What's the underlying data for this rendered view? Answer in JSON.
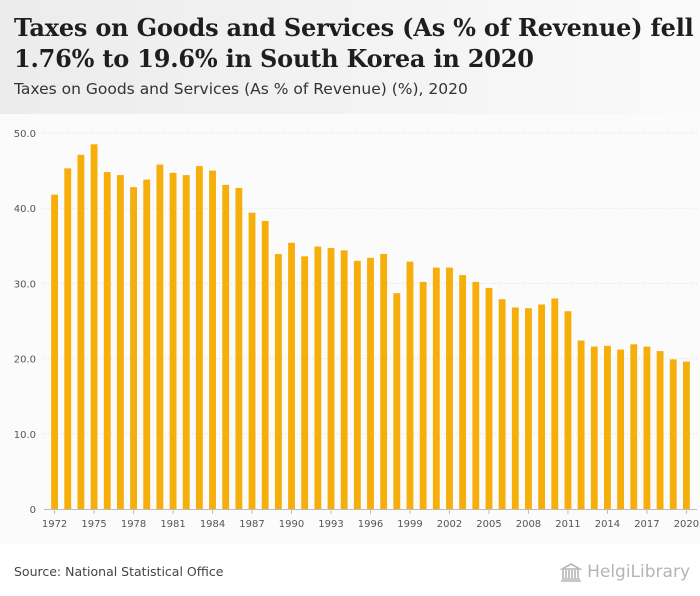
{
  "title": "Taxes on Goods and Services (As % of Revenue) fell 1.76% to 19.6% in South Korea in 2020",
  "subtitle": "Taxes on Goods and Services (As % of Revenue) (%), 2020",
  "source": "Source: National Statistical Office",
  "logo_text": "HelgiLibrary",
  "colors": {
    "bar": "#f5ae0a",
    "grid": "#dcdcdc",
    "axis_text": "#555555"
  },
  "chart_data": {
    "type": "bar",
    "title": "",
    "xlabel": "",
    "ylabel": "",
    "ylim": [
      0,
      50
    ],
    "yticks": [
      "0",
      "10.0",
      "20.0",
      "30.0",
      "40.0",
      "50.0"
    ],
    "grid": true,
    "categories": [
      "1972",
      "1973",
      "1974",
      "1975",
      "1976",
      "1977",
      "1978",
      "1979",
      "1980",
      "1981",
      "1982",
      "1983",
      "1984",
      "1985",
      "1986",
      "1987",
      "1988",
      "1989",
      "1990",
      "1991",
      "1992",
      "1993",
      "1994",
      "1995",
      "1996",
      "1997",
      "1998",
      "1999",
      "2000",
      "2001",
      "2002",
      "2003",
      "2004",
      "2005",
      "2006",
      "2007",
      "2008",
      "2009",
      "2010",
      "2011",
      "2012",
      "2013",
      "2014",
      "2015",
      "2016",
      "2017",
      "2018",
      "2019",
      "2020"
    ],
    "xtick_labels": [
      "1972",
      "1975",
      "1978",
      "1981",
      "1984",
      "1987",
      "1990",
      "1993",
      "1996",
      "1999",
      "2002",
      "2005",
      "2008",
      "2011",
      "2014",
      "2017",
      "2020"
    ],
    "values": [
      41.8,
      45.3,
      47.1,
      48.5,
      44.8,
      44.4,
      42.8,
      43.8,
      45.8,
      44.7,
      44.4,
      45.6,
      45.0,
      43.1,
      42.7,
      39.4,
      38.3,
      33.9,
      35.4,
      33.6,
      34.9,
      34.7,
      34.4,
      33.0,
      33.4,
      33.9,
      28.7,
      32.9,
      30.2,
      32.1,
      32.1,
      31.1,
      30.2,
      29.4,
      27.9,
      26.8,
      26.7,
      27.2,
      28.0,
      26.3,
      22.4,
      21.6,
      21.7,
      21.2,
      21.9,
      21.6,
      21.0,
      19.9,
      19.6
    ]
  }
}
